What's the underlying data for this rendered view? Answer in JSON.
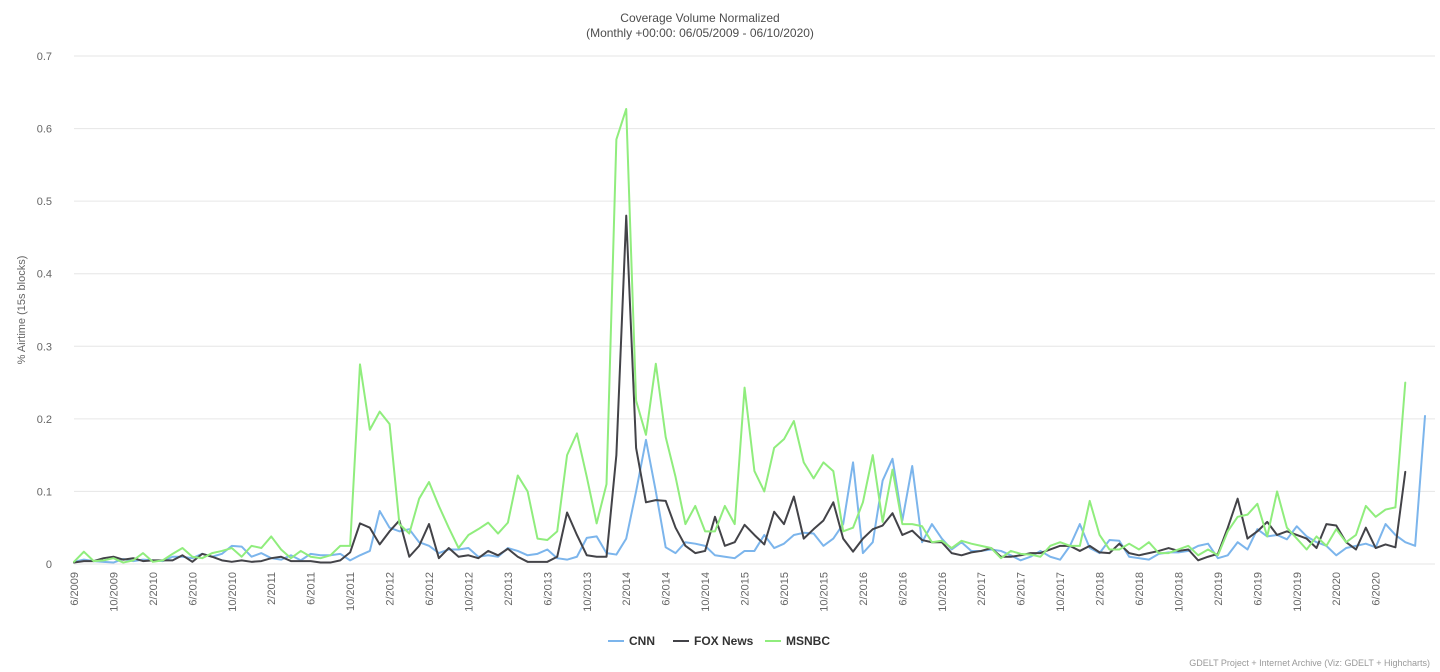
{
  "chart_data": {
    "type": "line",
    "title": "Coverage Volume Normalized",
    "subtitle": "(Monthly +00:00: 06/05/2009 - 06/10/2020)",
    "ylabel": "% Airtime (15s blocks)",
    "xlabel": "",
    "ylim": [
      0,
      0.7
    ],
    "y_ticks": [
      "0",
      "0.1",
      "0.2",
      "0.3",
      "0.4",
      "0.5",
      "0.6",
      "0.7"
    ],
    "x_start": "2009-06",
    "x_tick_labels": [
      "6/2009",
      "10/2009",
      "2/2010",
      "6/2010",
      "10/2010",
      "2/2011",
      "6/2011",
      "10/2011",
      "2/2012",
      "6/2012",
      "10/2012",
      "2/2013",
      "6/2013",
      "10/2013",
      "2/2014",
      "6/2014",
      "10/2014",
      "2/2015",
      "6/2015",
      "10/2015",
      "2/2016",
      "6/2016",
      "10/2016",
      "2/2017",
      "6/2017",
      "10/2017",
      "2/2018",
      "6/2018",
      "10/2018",
      "2/2019",
      "6/2019",
      "10/2019",
      "2/2020",
      "6/2020"
    ],
    "grid": true,
    "legend_position": "bottom-center",
    "series": [
      {
        "name": "CNN",
        "color": "#7cb5ec",
        "values": [
          0.003,
          0.006,
          0.004,
          0.003,
          0.002,
          0.007,
          0.004,
          0.006,
          0.005,
          0.004,
          0.01,
          0.01,
          0.008,
          0.014,
          0.01,
          0.014,
          0.025,
          0.024,
          0.01,
          0.015,
          0.008,
          0.006,
          0.012,
          0.005,
          0.014,
          0.012,
          0.012,
          0.014,
          0.005,
          0.012,
          0.018,
          0.073,
          0.05,
          0.045,
          0.048,
          0.03,
          0.025,
          0.015,
          0.02,
          0.02,
          0.022,
          0.01,
          0.012,
          0.01,
          0.022,
          0.018,
          0.012,
          0.014,
          0.02,
          0.008,
          0.006,
          0.01,
          0.036,
          0.038,
          0.015,
          0.013,
          0.035,
          0.1,
          0.171,
          0.1,
          0.023,
          0.015,
          0.03,
          0.028,
          0.025,
          0.012,
          0.01,
          0.008,
          0.018,
          0.018,
          0.04,
          0.022,
          0.028,
          0.04,
          0.043,
          0.042,
          0.025,
          0.035,
          0.055,
          0.14,
          0.015,
          0.03,
          0.115,
          0.145,
          0.06,
          0.135,
          0.03,
          0.055,
          0.035,
          0.02,
          0.03,
          0.018,
          0.018,
          0.02,
          0.018,
          0.012,
          0.005,
          0.01,
          0.018,
          0.01,
          0.006,
          0.025,
          0.055,
          0.022,
          0.015,
          0.033,
          0.032,
          0.01,
          0.008,
          0.006,
          0.014,
          0.016,
          0.016,
          0.018,
          0.025,
          0.028,
          0.008,
          0.012,
          0.03,
          0.02,
          0.048,
          0.038,
          0.04,
          0.034,
          0.052,
          0.038,
          0.03,
          0.025,
          0.012,
          0.022,
          0.025,
          0.028,
          0.023,
          0.055,
          0.04,
          0.03,
          0.025,
          0.204
        ]
      },
      {
        "name": "FOX News",
        "color": "#434348",
        "values": [
          0.002,
          0.004,
          0.004,
          0.008,
          0.01,
          0.006,
          0.008,
          0.004,
          0.005,
          0.005,
          0.005,
          0.012,
          0.003,
          0.014,
          0.01,
          0.005,
          0.003,
          0.005,
          0.003,
          0.004,
          0.008,
          0.01,
          0.004,
          0.004,
          0.004,
          0.002,
          0.002,
          0.005,
          0.016,
          0.056,
          0.05,
          0.027,
          0.045,
          0.06,
          0.01,
          0.025,
          0.055,
          0.008,
          0.022,
          0.01,
          0.012,
          0.008,
          0.018,
          0.012,
          0.021,
          0.01,
          0.003,
          0.003,
          0.003,
          0.01,
          0.071,
          0.04,
          0.012,
          0.01,
          0.01,
          0.15,
          0.48,
          0.16,
          0.085,
          0.088,
          0.087,
          0.05,
          0.025,
          0.015,
          0.018,
          0.065,
          0.025,
          0.03,
          0.054,
          0.04,
          0.027,
          0.072,
          0.055,
          0.093,
          0.035,
          0.048,
          0.06,
          0.085,
          0.035,
          0.017,
          0.035,
          0.048,
          0.053,
          0.07,
          0.04,
          0.046,
          0.033,
          0.03,
          0.03,
          0.015,
          0.012,
          0.016,
          0.018,
          0.022,
          0.01,
          0.01,
          0.012,
          0.015,
          0.015,
          0.02,
          0.025,
          0.025,
          0.018,
          0.025,
          0.016,
          0.015,
          0.028,
          0.015,
          0.012,
          0.015,
          0.018,
          0.022,
          0.018,
          0.02,
          0.005,
          0.01,
          0.014,
          0.05,
          0.09,
          0.035,
          0.045,
          0.058,
          0.04,
          0.045,
          0.04,
          0.035,
          0.022,
          0.055,
          0.053,
          0.03,
          0.02,
          0.05,
          0.022,
          0.027,
          0.023,
          0.127
        ]
      },
      {
        "name": "MSNBC",
        "color": "#90ed7d",
        "values": [
          0.003,
          0.017,
          0.004,
          0.005,
          0.008,
          0.002,
          0.005,
          0.015,
          0.003,
          0.005,
          0.014,
          0.022,
          0.01,
          0.008,
          0.015,
          0.018,
          0.022,
          0.01,
          0.025,
          0.022,
          0.038,
          0.02,
          0.008,
          0.018,
          0.01,
          0.008,
          0.012,
          0.025,
          0.025,
          0.275,
          0.185,
          0.21,
          0.193,
          0.055,
          0.042,
          0.09,
          0.113,
          0.08,
          0.05,
          0.022,
          0.04,
          0.048,
          0.057,
          0.042,
          0.057,
          0.122,
          0.1,
          0.035,
          0.033,
          0.045,
          0.15,
          0.18,
          0.12,
          0.056,
          0.11,
          0.585,
          0.627,
          0.225,
          0.178,
          0.276,
          0.175,
          0.12,
          0.055,
          0.08,
          0.045,
          0.045,
          0.08,
          0.055,
          0.243,
          0.128,
          0.1,
          0.16,
          0.172,
          0.197,
          0.14,
          0.118,
          0.14,
          0.128,
          0.045,
          0.05,
          0.085,
          0.15,
          0.058,
          0.13,
          0.055,
          0.055,
          0.052,
          0.03,
          0.032,
          0.022,
          0.032,
          0.028,
          0.025,
          0.022,
          0.008,
          0.018,
          0.014,
          0.013,
          0.01,
          0.025,
          0.03,
          0.025,
          0.025,
          0.087,
          0.04,
          0.02,
          0.02,
          0.028,
          0.02,
          0.03,
          0.015,
          0.015,
          0.02,
          0.025,
          0.012,
          0.02,
          0.012,
          0.045,
          0.065,
          0.068,
          0.083,
          0.038,
          0.1,
          0.05,
          0.035,
          0.02,
          0.038,
          0.025,
          0.048,
          0.03,
          0.04,
          0.08,
          0.065,
          0.075,
          0.078,
          0.25
        ]
      }
    ]
  },
  "credits": "GDELT Project + Internet Archive (Viz: GDELT + Highcharts)"
}
